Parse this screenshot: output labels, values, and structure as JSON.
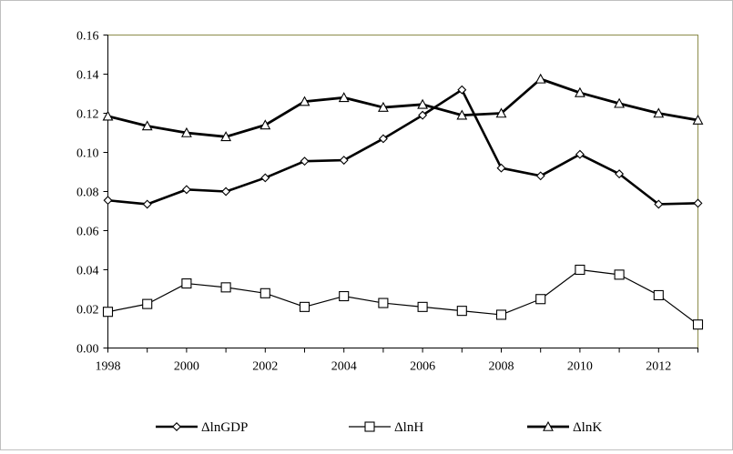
{
  "chart_data": {
    "type": "line",
    "title": "",
    "xlabel": "",
    "ylabel": "",
    "x": [
      1998,
      1999,
      2000,
      2001,
      2002,
      2003,
      2004,
      2005,
      2006,
      2007,
      2008,
      2009,
      2010,
      2011,
      2012,
      2013
    ],
    "xlim": [
      1998,
      2013
    ],
    "ylim": [
      0,
      0.16
    ],
    "x_ticks": [
      "1998",
      "2000",
      "2002",
      "2004",
      "2006",
      "2008",
      "2010",
      "2012"
    ],
    "y_ticks": [
      "0.00",
      "0.02",
      "0.04",
      "0.06",
      "0.08",
      "0.10",
      "0.12",
      "0.14",
      "0.16"
    ],
    "grid": false,
    "legend_position": "bottom",
    "plot_border_color": "#8c8c4a",
    "series": [
      {
        "name": "ΔlnGDP",
        "marker": "diamond",
        "color": "#000000",
        "values": [
          0.0755,
          0.0735,
          0.081,
          0.08,
          0.087,
          0.0955,
          0.096,
          0.107,
          0.119,
          0.132,
          0.092,
          0.088,
          0.099,
          0.089,
          0.0735,
          0.074
        ]
      },
      {
        "name": "ΔlnH",
        "marker": "square",
        "color": "#000000",
        "values": [
          0.0185,
          0.0225,
          0.033,
          0.031,
          0.028,
          0.021,
          0.0265,
          0.023,
          0.021,
          0.019,
          0.017,
          0.025,
          0.04,
          0.0375,
          0.027,
          0.012
        ]
      },
      {
        "name": "ΔlnK",
        "marker": "triangle",
        "color": "#000000",
        "values": [
          0.1185,
          0.1135,
          0.11,
          0.108,
          0.114,
          0.126,
          0.128,
          0.123,
          0.1245,
          0.119,
          0.12,
          0.1375,
          0.1305,
          0.125,
          0.12,
          0.1165
        ]
      }
    ]
  }
}
